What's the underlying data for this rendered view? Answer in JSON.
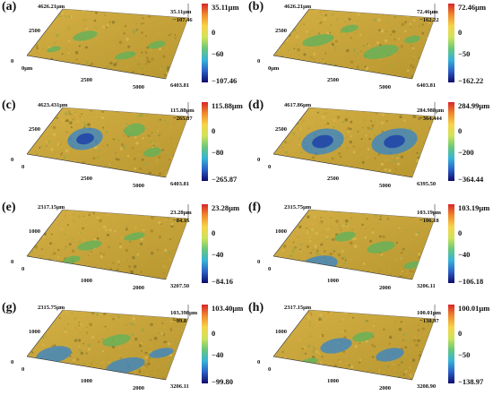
{
  "panels": [
    {
      "label": "(a)",
      "top_axis": "4626.21μm",
      "y_tick": "2500",
      "origin_tick": "0",
      "x_origin": "0μm",
      "x_ticks": [
        "2500",
        "5000"
      ],
      "x_end": "6403.81",
      "z_max": "35.11μm",
      "z_min": "−107.46",
      "cb_max": "35.11μm",
      "cb_mid1": "0",
      "cb_mid2": "−60",
      "cb_min": "−107.46"
    },
    {
      "label": "(b)",
      "top_axis": "4626.21μm",
      "y_tick": "2500",
      "origin_tick": "0",
      "x_origin": "0μm",
      "x_ticks": [
        "2500",
        "5000"
      ],
      "x_end": "6403.81",
      "z_max": "72.46μm",
      "z_min": "−162.22",
      "cb_max": "72.46μm",
      "cb_mid1": "0",
      "cb_mid2": "−50",
      "cb_min": "−162.22"
    },
    {
      "label": "(c)",
      "top_axis": "4623.431μm",
      "y_tick": "2500",
      "origin_tick": "0",
      "x_origin": "0",
      "x_ticks": [
        "2500",
        "5000"
      ],
      "x_end": "6403.81",
      "z_max": "115.88μm",
      "z_min": "−265.87",
      "cb_max": "115.88μm",
      "cb_mid1": "0",
      "cb_mid2": "−80",
      "cb_min": "−265.87"
    },
    {
      "label": "(d)",
      "top_axis": "4617.86μm",
      "y_tick": "2500",
      "origin_tick": "0",
      "x_origin": "0",
      "x_ticks": [
        "2500",
        "5000"
      ],
      "x_end": "6395.50",
      "z_max": "284.988μm",
      "z_min": "−364.444",
      "cb_max": "284.99μm",
      "cb_mid1": "0",
      "cb_mid2": "−200",
      "cb_min": "−364.44"
    },
    {
      "label": "(e)",
      "top_axis": "2317.15μm",
      "y_tick": "1000",
      "origin_tick": "0",
      "x_origin": "0",
      "x_ticks": [
        "1000",
        "2000"
      ],
      "x_end": "3207.50",
      "z_max": "23.28μm",
      "z_min": "−84.16",
      "cb_max": "23.28μm",
      "cb_mid1": "0",
      "cb_mid2": "−40",
      "cb_min": "−84.16"
    },
    {
      "label": "(f)",
      "top_axis": "2315.75μm",
      "y_tick": "1000",
      "origin_tick": "0",
      "x_origin": "0",
      "x_ticks": [
        "1000",
        "2000"
      ],
      "x_end": "3206.11",
      "z_max": "103.19μm",
      "z_min": "−106.18",
      "cb_max": "103.19μm",
      "cb_mid1": "0",
      "cb_mid2": "−40",
      "cb_min": "−106.18"
    },
    {
      "label": "(g)",
      "top_axis": "2315.75μm",
      "y_tick": "1000",
      "origin_tick": "0",
      "x_origin": "0",
      "x_ticks": [
        "1000",
        "2000"
      ],
      "x_end": "3206.11",
      "z_max": "103.398μm",
      "z_min": "−99.8",
      "cb_max": "103.40μm",
      "cb_mid1": "0",
      "cb_mid2": "−40",
      "cb_min": "−99.80"
    },
    {
      "label": "(h)",
      "top_axis": "2317.15μm",
      "y_tick": "1000",
      "origin_tick": "0",
      "x_origin": "0",
      "x_ticks": [
        "1000",
        "2000"
      ],
      "x_end": "3208.90",
      "z_max": "100.01μm",
      "z_min": "−138.97",
      "cb_max": "100.01μm",
      "cb_mid1": "0",
      "cb_mid2": "−50",
      "cb_min": "−138.97"
    }
  ],
  "colors": {
    "colorbar_stops": [
      "#d7262a",
      "#f08a2c",
      "#f6d44a",
      "#cfe35a",
      "#69c77a",
      "#37b3d8",
      "#2a5fc6",
      "#0e0a6a"
    ],
    "surface_base": "#b8962f",
    "surface_light": "#d4b045",
    "low_region_green": "#63b25a",
    "low_region_blue": "#3b86c4",
    "low_region_deep": "#1a3fa8"
  }
}
